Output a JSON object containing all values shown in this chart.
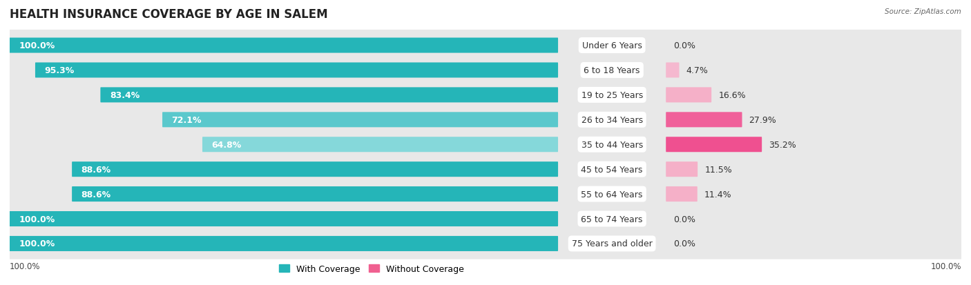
{
  "title": "HEALTH INSURANCE COVERAGE BY AGE IN SALEM",
  "source": "Source: ZipAtlas.com",
  "categories": [
    "Under 6 Years",
    "6 to 18 Years",
    "19 to 25 Years",
    "26 to 34 Years",
    "35 to 44 Years",
    "45 to 54 Years",
    "55 to 64 Years",
    "65 to 74 Years",
    "75 Years and older"
  ],
  "with_coverage": [
    100.0,
    95.3,
    83.4,
    72.1,
    64.8,
    88.6,
    88.6,
    100.0,
    100.0
  ],
  "without_coverage": [
    0.0,
    4.7,
    16.6,
    27.9,
    35.2,
    11.5,
    11.4,
    0.0,
    0.0
  ],
  "teal_colors": [
    "#25b5b8",
    "#25b5b8",
    "#25b5b8",
    "#5ac8cc",
    "#85d8da",
    "#25b5b8",
    "#25b5b8",
    "#25b5b8",
    "#25b5b8"
  ],
  "pink_colors": [
    "#f5c0d5",
    "#f5b8cf",
    "#f5b0c8",
    "#f0609a",
    "#ef5090",
    "#f5b0c8",
    "#f5b0c8",
    "#f5c0d5",
    "#f5c0d5"
  ],
  "background_fig": "#ffffff",
  "row_bg_color": "#e8e8e8",
  "title_fontsize": 12,
  "label_fontsize": 9,
  "cat_fontsize": 9,
  "legend_label_with": "With Coverage",
  "legend_label_without": "Without Coverage",
  "xlabel_bottom_left": "100.0%",
  "xlabel_bottom_right": "100.0%"
}
